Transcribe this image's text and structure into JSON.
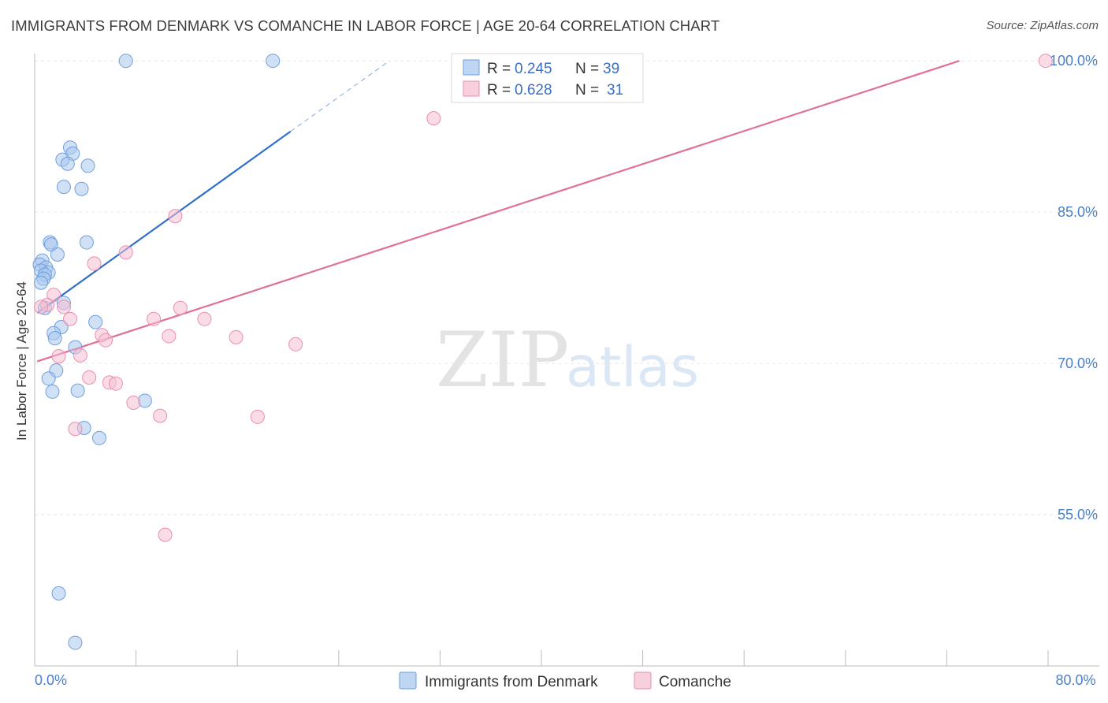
{
  "title": "IMMIGRANTS FROM DENMARK VS COMANCHE IN LABOR FORCE | AGE 20-64 CORRELATION CHART",
  "source": "Source: ZipAtlas.com",
  "watermark": {
    "zip": "ZIP",
    "atlas": "atlas"
  },
  "colors": {
    "blue_fill": "#a9c8ef",
    "blue_stroke": "#6f9fe0",
    "blue_line": "#2f6fcc",
    "pink_fill": "#f6bfd1",
    "pink_stroke": "#ea8fb0",
    "pink_line": "#e0709a",
    "grid": "#e6e6e6",
    "tick_text": "#4a7fc9"
  },
  "legend": {
    "rows": [
      {
        "r_label": "R = ",
        "r_value": "0.245",
        "n_label": "N = ",
        "n_value": "39",
        "series": "blue"
      },
      {
        "r_label": "R = ",
        "r_value": "0.628",
        "n_label": "N = ",
        "n_value": "31",
        "series": "pink"
      }
    ]
  },
  "chart_data": {
    "type": "scatter",
    "xlabel": "",
    "ylabel": "In Labor Force | Age 20-64",
    "xlim": [
      0,
      80
    ],
    "ylim": [
      40,
      101.5
    ],
    "x_tick_labels": [
      {
        "value": 0,
        "label": "0.0%"
      },
      {
        "value": 80,
        "label": "80.0%"
      }
    ],
    "y_tick_labels": [
      {
        "value": 100,
        "label": "100.0%"
      },
      {
        "value": 85,
        "label": "85.0%"
      },
      {
        "value": 70,
        "label": "70.0%"
      },
      {
        "value": 55,
        "label": "55.0%"
      }
    ],
    "legend_placement": "top-center",
    "series": [
      {
        "name": "Immigrants from Denmark",
        "color": "blue",
        "points": [
          [
            7.2,
            100
          ],
          [
            18.8,
            100
          ],
          [
            2.8,
            91.4
          ],
          [
            3.0,
            90.8
          ],
          [
            2.2,
            90.2
          ],
          [
            2.6,
            89.8
          ],
          [
            4.2,
            89.6
          ],
          [
            2.3,
            87.5
          ],
          [
            3.7,
            87.3
          ],
          [
            1.2,
            82.0
          ],
          [
            1.3,
            81.8
          ],
          [
            4.1,
            82.0
          ],
          [
            1.8,
            80.8
          ],
          [
            0.6,
            80.2
          ],
          [
            0.4,
            79.8
          ],
          [
            0.9,
            79.5
          ],
          [
            0.5,
            79.2
          ],
          [
            1.1,
            79.0
          ],
          [
            0.8,
            78.8
          ],
          [
            0.7,
            78.4
          ],
          [
            0.5,
            78.0
          ],
          [
            2.3,
            76.0
          ],
          [
            0.8,
            75.5
          ],
          [
            4.8,
            74.1
          ],
          [
            2.1,
            73.6
          ],
          [
            1.5,
            73.0
          ],
          [
            1.6,
            72.5
          ],
          [
            3.2,
            71.6
          ],
          [
            1.7,
            69.3
          ],
          [
            1.1,
            68.5
          ],
          [
            1.4,
            67.2
          ],
          [
            3.4,
            67.3
          ],
          [
            8.7,
            66.3
          ],
          [
            3.9,
            63.6
          ],
          [
            5.1,
            62.6
          ],
          [
            1.9,
            47.2
          ],
          [
            3.2,
            42.3
          ]
        ],
        "trend": {
          "x0": 0.2,
          "y0": 75.0,
          "x1": 20.2,
          "y1": 93.0,
          "dashed_x1": 28.0,
          "dashed_y1": 100.0
        }
      },
      {
        "name": "Comanche",
        "color": "pink",
        "points": [
          [
            33.5,
            100
          ],
          [
            79.8,
            100
          ],
          [
            31.5,
            94.3
          ],
          [
            11.1,
            84.6
          ],
          [
            7.2,
            81.0
          ],
          [
            4.7,
            79.9
          ],
          [
            1.5,
            76.8
          ],
          [
            1.0,
            75.8
          ],
          [
            0.5,
            75.6
          ],
          [
            2.3,
            75.6
          ],
          [
            11.5,
            75.5
          ],
          [
            9.4,
            74.4
          ],
          [
            13.4,
            74.4
          ],
          [
            2.8,
            74.4
          ],
          [
            5.3,
            72.8
          ],
          [
            10.6,
            72.7
          ],
          [
            15.9,
            72.6
          ],
          [
            5.6,
            72.3
          ],
          [
            20.6,
            71.9
          ],
          [
            1.9,
            70.7
          ],
          [
            3.6,
            70.8
          ],
          [
            4.3,
            68.6
          ],
          [
            5.9,
            68.1
          ],
          [
            6.4,
            68.0
          ],
          [
            7.8,
            66.1
          ],
          [
            9.9,
            64.8
          ],
          [
            17.6,
            64.7
          ],
          [
            3.2,
            63.5
          ],
          [
            10.3,
            53.0
          ]
        ],
        "trend": {
          "x0": 0.2,
          "y0": 70.2,
          "x1": 73.0,
          "y1": 100.0
        }
      }
    ]
  }
}
